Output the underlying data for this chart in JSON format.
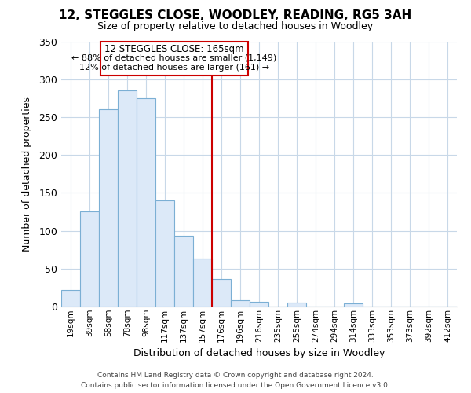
{
  "title": "12, STEGGLES CLOSE, WOODLEY, READING, RG5 3AH",
  "subtitle": "Size of property relative to detached houses in Woodley",
  "xlabel": "Distribution of detached houses by size in Woodley",
  "ylabel": "Number of detached properties",
  "bar_labels": [
    "19sqm",
    "39sqm",
    "58sqm",
    "78sqm",
    "98sqm",
    "117sqm",
    "137sqm",
    "157sqm",
    "176sqm",
    "196sqm",
    "216sqm",
    "235sqm",
    "255sqm",
    "274sqm",
    "294sqm",
    "314sqm",
    "333sqm",
    "353sqm",
    "373sqm",
    "392sqm",
    "412sqm"
  ],
  "bar_values": [
    22,
    125,
    260,
    285,
    275,
    140,
    93,
    63,
    36,
    8,
    6,
    0,
    5,
    0,
    0,
    4,
    0,
    0,
    0,
    0,
    0
  ],
  "bar_color": "#dce9f8",
  "bar_edge_color": "#7bafd4",
  "marker_line_color": "#cc0000",
  "annotation_text_line1": "12 STEGGLES CLOSE: 165sqm",
  "annotation_text_line2": "← 88% of detached houses are smaller (1,149)",
  "annotation_text_line3": "12% of detached houses are larger (161) →",
  "annotation_box_color": "#ffffff",
  "annotation_box_edge_color": "#cc0000",
  "ylim": [
    0,
    350
  ],
  "yticks": [
    0,
    50,
    100,
    150,
    200,
    250,
    300,
    350
  ],
  "footer_line1": "Contains HM Land Registry data © Crown copyright and database right 2024.",
  "footer_line2": "Contains public sector information licensed under the Open Government Licence v3.0.",
  "background_color": "#ffffff",
  "grid_color": "#c8d8e8"
}
